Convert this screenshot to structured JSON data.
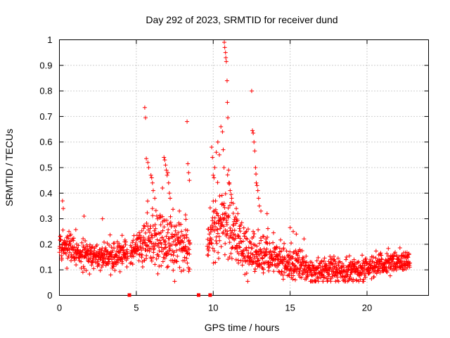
{
  "chart_data": {
    "type": "scatter",
    "title": "Day 292 of 2023, SRMTID for receiver dund",
    "xlabel": "GPS time / hours",
    "ylabel": "SRMTID / TECUs",
    "xlim": [
      0,
      24
    ],
    "ylim": [
      0,
      1
    ],
    "xticks": [
      0,
      5,
      10,
      15,
      20
    ],
    "xtick_labels": [
      "0",
      "5",
      "10",
      "15",
      "20"
    ],
    "yticks": [
      0,
      0.1,
      0.2,
      0.3,
      0.4,
      0.5,
      0.6,
      0.7,
      0.8,
      0.9,
      1
    ],
    "ytick_labels": [
      "0",
      "0.1",
      "0.2",
      "0.3",
      "0.4",
      "0.5",
      "0.6",
      "0.7",
      "0.8",
      "0.9",
      "1"
    ],
    "grid": true,
    "marker": "plus",
    "series_color": "#ff0000",
    "series": [
      {
        "name": "SRMTID",
        "baseline": [
          [
            0.0,
            0.17
          ],
          [
            0.5,
            0.19
          ],
          [
            1.0,
            0.18
          ],
          [
            1.5,
            0.16
          ],
          [
            2.0,
            0.15
          ],
          [
            2.5,
            0.15
          ],
          [
            3.0,
            0.15
          ],
          [
            3.5,
            0.15
          ],
          [
            4.0,
            0.16
          ],
          [
            4.5,
            0.17
          ],
          [
            5.0,
            0.18
          ],
          [
            5.5,
            0.2
          ],
          [
            6.0,
            0.22
          ],
          [
            6.5,
            0.22
          ],
          [
            7.0,
            0.21
          ],
          [
            7.5,
            0.2
          ],
          [
            8.0,
            0.19
          ],
          [
            8.5,
            0.18
          ],
          [
            9.0,
            0.17
          ],
          [
            9.5,
            0.19
          ],
          [
            10.0,
            0.25
          ],
          [
            10.5,
            0.3
          ],
          [
            11.0,
            0.27
          ],
          [
            11.5,
            0.22
          ],
          [
            12.0,
            0.18
          ],
          [
            12.5,
            0.17
          ],
          [
            13.0,
            0.17
          ],
          [
            13.5,
            0.17
          ],
          [
            14.0,
            0.15
          ],
          [
            14.5,
            0.13
          ],
          [
            15.0,
            0.12
          ],
          [
            15.5,
            0.12
          ],
          [
            16.0,
            0.11
          ],
          [
            16.5,
            0.1
          ],
          [
            17.0,
            0.1
          ],
          [
            17.5,
            0.1
          ],
          [
            18.0,
            0.09
          ],
          [
            18.5,
            0.09
          ],
          [
            19.0,
            0.09
          ],
          [
            19.5,
            0.1
          ],
          [
            20.0,
            0.11
          ],
          [
            20.5,
            0.12
          ],
          [
            21.0,
            0.12
          ],
          [
            21.5,
            0.12
          ],
          [
            22.0,
            0.13
          ],
          [
            22.8,
            0.14
          ]
        ],
        "spread": [
          [
            0.0,
            0.06
          ],
          [
            5.0,
            0.06
          ],
          [
            6.0,
            0.1
          ],
          [
            8.0,
            0.09
          ],
          [
            9.5,
            0.06
          ],
          [
            10.0,
            0.12
          ],
          [
            11.0,
            0.13
          ],
          [
            12.0,
            0.08
          ],
          [
            13.0,
            0.08
          ],
          [
            14.0,
            0.06
          ],
          [
            22.8,
            0.04
          ]
        ],
        "outliers": [
          [
            0.2,
            0.37
          ],
          [
            0.25,
            0.34
          ],
          [
            1.6,
            0.31
          ],
          [
            2.8,
            0.3
          ],
          [
            5.55,
            0.735
          ],
          [
            5.6,
            0.695
          ],
          [
            5.65,
            0.535
          ],
          [
            5.75,
            0.52
          ],
          [
            5.8,
            0.5
          ],
          [
            5.95,
            0.47
          ],
          [
            6.0,
            0.46
          ],
          [
            6.05,
            0.44
          ],
          [
            6.1,
            0.41
          ],
          [
            6.2,
            0.38
          ],
          [
            6.7,
            0.42
          ],
          [
            6.8,
            0.54
          ],
          [
            6.85,
            0.53
          ],
          [
            6.9,
            0.51
          ],
          [
            6.95,
            0.49
          ],
          [
            7.0,
            0.47
          ],
          [
            7.05,
            0.48
          ],
          [
            7.1,
            0.44
          ],
          [
            7.15,
            0.4
          ],
          [
            7.2,
            0.38
          ],
          [
            7.8,
            0.33
          ],
          [
            8.2,
            0.315
          ],
          [
            8.3,
            0.68
          ],
          [
            8.35,
            0.515
          ],
          [
            8.4,
            0.48
          ],
          [
            8.45,
            0.45
          ],
          [
            9.9,
            0.58
          ],
          [
            9.95,
            0.54
          ],
          [
            10.0,
            0.47
          ],
          [
            10.05,
            0.46
          ],
          [
            10.1,
            0.5
          ],
          [
            10.2,
            0.56
          ],
          [
            10.3,
            0.6
          ],
          [
            10.4,
            0.55
          ],
          [
            10.5,
            0.66
          ],
          [
            10.6,
            0.64
          ],
          [
            10.65,
            0.57
          ],
          [
            10.7,
            0.5
          ],
          [
            10.72,
            0.99
          ],
          [
            10.75,
            0.97
          ],
          [
            10.8,
            0.95
          ],
          [
            10.82,
            0.93
          ],
          [
            10.85,
            0.915
          ],
          [
            10.9,
            0.84
          ],
          [
            10.92,
            0.755
          ],
          [
            10.95,
            0.695
          ],
          [
            11.0,
            0.49
          ],
          [
            11.05,
            0.44
          ],
          [
            11.1,
            0.41
          ],
          [
            11.2,
            0.38
          ],
          [
            11.3,
            0.36
          ],
          [
            11.5,
            0.34
          ],
          [
            11.6,
            0.32
          ],
          [
            12.5,
            0.8
          ],
          [
            12.55,
            0.645
          ],
          [
            12.6,
            0.635
          ],
          [
            12.65,
            0.6
          ],
          [
            12.7,
            0.565
          ],
          [
            12.75,
            0.5
          ],
          [
            12.78,
            0.475
          ],
          [
            12.8,
            0.44
          ],
          [
            12.85,
            0.43
          ],
          [
            12.9,
            0.41
          ],
          [
            12.95,
            0.38
          ],
          [
            13.0,
            0.35
          ],
          [
            13.1,
            0.33
          ],
          [
            13.5,
            0.32
          ],
          [
            15.0,
            0.265
          ],
          [
            15.2,
            0.25
          ],
          [
            15.4,
            0.24
          ]
        ],
        "zero_points": [
          4.55,
          9.05,
          9.8
        ]
      }
    ]
  }
}
